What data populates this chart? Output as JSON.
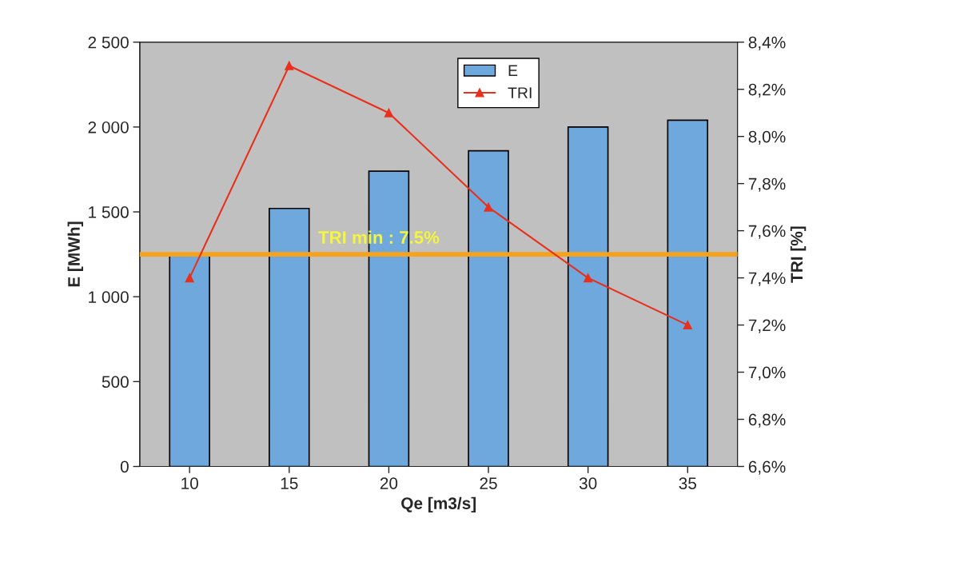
{
  "chart_data": {
    "type": "bar",
    "xlabel": "Qe [m3/s]",
    "ylabel": "E [MWh]",
    "y2label": "TRI [%]",
    "categories": [
      "10",
      "15",
      "20",
      "25",
      "30",
      "35"
    ],
    "series": [
      {
        "name": "E",
        "color": "#6fa8dc",
        "values": [
          1240,
          1520,
          1740,
          1860,
          2000,
          2040
        ]
      },
      {
        "name": "TRI",
        "type": "line",
        "axis": "y2",
        "color": "#e8301c",
        "marker": "triangle",
        "line_style": "solid",
        "values": [
          7.4,
          8.3,
          8.1,
          7.7,
          7.4,
          7.2
        ]
      }
    ],
    "ylim": [
      0,
      2500
    ],
    "yticks": [
      {
        "value": 0,
        "label": "0"
      },
      {
        "value": 500,
        "label": "500"
      },
      {
        "value": 1000,
        "label": "1 000"
      },
      {
        "value": 1500,
        "label": "1 500"
      },
      {
        "value": 2000,
        "label": "2 000"
      },
      {
        "value": 2500,
        "label": "2 500"
      }
    ],
    "y2lim": [
      6.6,
      8.4
    ],
    "y2ticks": [
      {
        "value": 6.6,
        "label": "6,6%"
      },
      {
        "value": 6.8,
        "label": "6,8%"
      },
      {
        "value": 7.0,
        "label": "7,0%"
      },
      {
        "value": 7.2,
        "label": "7,2%"
      },
      {
        "value": 7.4,
        "label": "7,4%"
      },
      {
        "value": 7.6,
        "label": "7,6%"
      },
      {
        "value": 7.8,
        "label": "7,8%"
      },
      {
        "value": 8.0,
        "label": "8,0%"
      },
      {
        "value": 8.2,
        "label": "8,2%"
      },
      {
        "value": 8.4,
        "label": "8,4%"
      }
    ],
    "ref_lines": [
      {
        "axis": "y2",
        "value": 7.5,
        "label": "TRI min : 7.5%",
        "color": "#f7a21b"
      }
    ],
    "grid": false,
    "legend": "top"
  }
}
